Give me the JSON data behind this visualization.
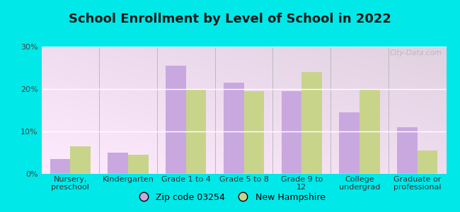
{
  "title": "School Enrollment by Level of School in 2022",
  "categories": [
    "Nursery,\npreschool",
    "Kindergarten",
    "Grade 1 to 4",
    "Grade 5 to 8",
    "Grade 9 to\n12",
    "College\nundergrad",
    "Graduate or\nprofessional"
  ],
  "zip_values": [
    3.5,
    5.0,
    25.5,
    21.5,
    19.5,
    14.5,
    11.0
  ],
  "nh_values": [
    6.5,
    4.5,
    20.0,
    19.5,
    24.0,
    20.0,
    5.5
  ],
  "zip_color": "#c9a8e0",
  "nh_color": "#c8d48a",
  "background_color": "#00e8e8",
  "plot_bg_color": "#e8f5e0",
  "ylim": [
    0,
    30
  ],
  "yticks": [
    0,
    10,
    20,
    30
  ],
  "zip_label": "Zip code 03254",
  "nh_label": "New Hampshire",
  "bar_width": 0.35,
  "title_fontsize": 13,
  "tick_fontsize": 8,
  "legend_fontsize": 9,
  "watermark": "City-Data.com"
}
